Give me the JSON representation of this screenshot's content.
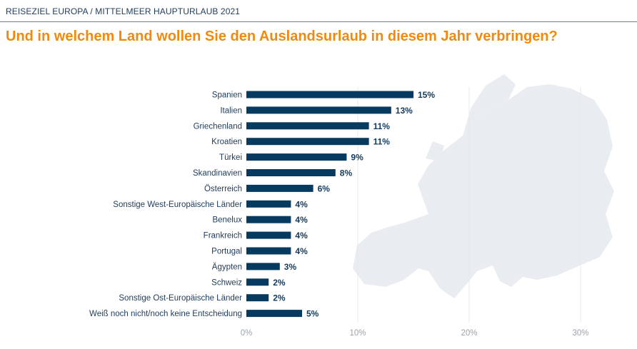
{
  "header": {
    "kicker": "REISEZIEL EUROPA / MITTELMEER HAUPTURLAUB 2021",
    "headline": "Und in welchem Land wollen Sie den Auslandsurlaub in diesem Jahr verbringen?"
  },
  "colors": {
    "bar": "#063a5f",
    "headline": "#f08a0e",
    "map": "#e9ecf0"
  },
  "chart_data": {
    "type": "bar",
    "orientation": "horizontal",
    "categories": [
      "Spanien",
      "Italien",
      "Griechenland",
      "Kroatien",
      "Türkei",
      "Skandinavien",
      "Österreich",
      "Sonstige West-Europäische Länder",
      "Benelux",
      "Frankreich",
      "Portugal",
      "Ägypten",
      "Schweiz",
      "Sonstige Ost-Europäische Länder",
      "Weiß noch nicht/noch keine Entscheidung"
    ],
    "values": [
      15,
      13,
      11,
      11,
      9,
      8,
      6,
      4,
      4,
      4,
      4,
      3,
      2,
      2,
      5
    ],
    "value_labels": [
      "15%",
      "13%",
      "11%",
      "11%",
      "9%",
      "8%",
      "6%",
      "4%",
      "4%",
      "4%",
      "4%",
      "3%",
      "2%",
      "2%",
      "5%"
    ],
    "xlim": [
      0,
      30
    ],
    "x_ticks": [
      0,
      10,
      20,
      30
    ],
    "x_tick_labels": [
      "0%",
      "10%",
      "20%",
      "30%"
    ],
    "grid": true,
    "legend": "none"
  }
}
